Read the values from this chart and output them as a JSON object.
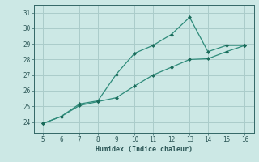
{
  "xlabel": "Humidex (Indice chaleur)",
  "background_color": "#cce8e5",
  "grid_color": "#aaccca",
  "line_color": "#2e8b7a",
  "marker_color": "#1a6b5a",
  "xlim": [
    4.5,
    16.5
  ],
  "ylim": [
    23.3,
    31.5
  ],
  "xticks": [
    5,
    6,
    7,
    8,
    9,
    10,
    11,
    12,
    13,
    14,
    15,
    16
  ],
  "yticks": [
    24,
    25,
    26,
    27,
    28,
    29,
    30,
    31
  ],
  "line1_x": [
    5,
    6,
    7,
    8,
    9,
    10,
    11,
    12,
    13,
    14,
    15,
    16
  ],
  "line1_y": [
    23.9,
    24.35,
    25.05,
    25.3,
    25.55,
    26.3,
    27.0,
    27.5,
    28.0,
    28.05,
    28.5,
    28.9
  ],
  "line2_x": [
    5,
    6,
    7,
    8,
    9,
    10,
    11,
    12,
    13,
    14,
    15,
    16
  ],
  "line2_y": [
    23.9,
    24.35,
    25.15,
    25.35,
    27.05,
    28.4,
    28.9,
    29.6,
    30.7,
    28.5,
    28.9,
    28.9
  ]
}
